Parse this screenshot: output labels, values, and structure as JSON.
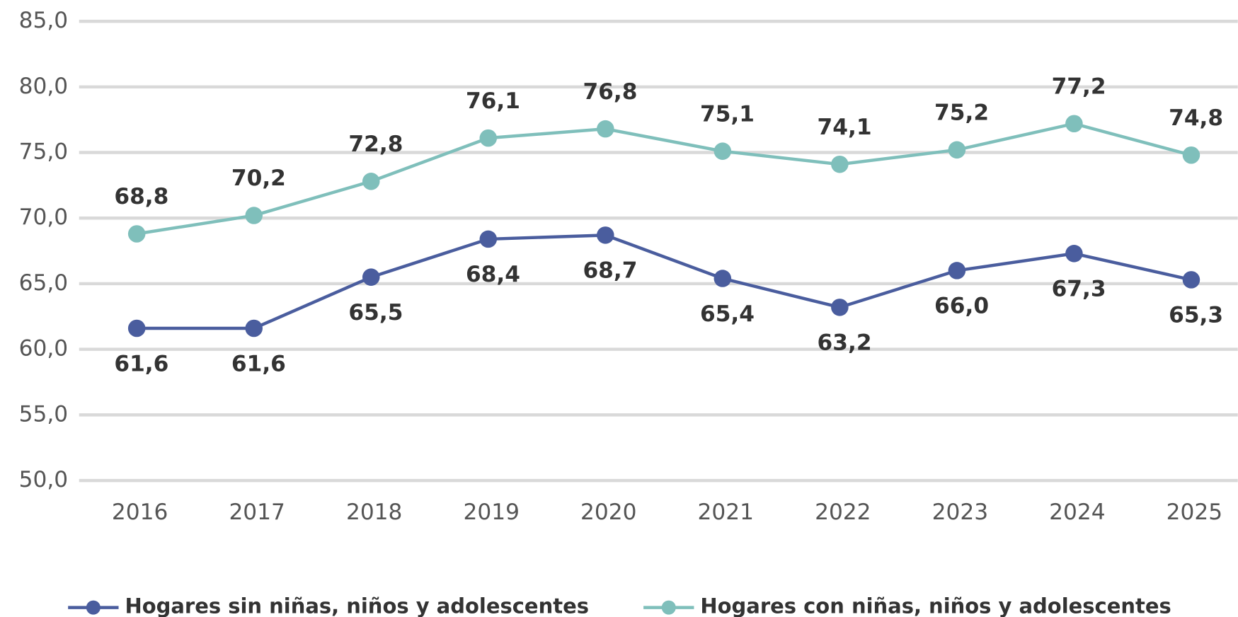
{
  "chart_data": {
    "type": "line",
    "categories": [
      "2016",
      "2017",
      "2018",
      "2019",
      "2020",
      "2021",
      "2022",
      "2023",
      "2024",
      "2025"
    ],
    "series": [
      {
        "name": "Hogares sin niñas, niños y adolescentes",
        "color": "#4a5d9e",
        "values": [
          61.6,
          61.6,
          65.5,
          68.4,
          68.7,
          65.4,
          63.2,
          66.0,
          67.3,
          65.3
        ],
        "value_labels": [
          "61,6",
          "61,6",
          "65,5",
          "68,4",
          "68,7",
          "65,4",
          "63,2",
          "66,0",
          "67,3",
          "65,3"
        ]
      },
      {
        "name": "Hogares con niñas, niños y adolescentes",
        "color": "#7fbfbb",
        "values": [
          68.8,
          70.2,
          72.8,
          76.1,
          76.8,
          75.1,
          74.1,
          75.2,
          77.2,
          74.8
        ],
        "value_labels": [
          "68,8",
          "70,2",
          "72,8",
          "76,1",
          "76,8",
          "75,1",
          "74,1",
          "75,2",
          "77,2",
          "74,8"
        ]
      }
    ],
    "ylim": [
      50,
      85
    ],
    "yticks": [
      {
        "value": 50,
        "label": "50,0"
      },
      {
        "value": 55,
        "label": "55,0"
      },
      {
        "value": 60,
        "label": "60,0"
      },
      {
        "value": 65,
        "label": "65,0"
      },
      {
        "value": 70,
        "label": "70,0"
      },
      {
        "value": 75,
        "label": "75,0"
      },
      {
        "value": 80,
        "label": "80,0"
      },
      {
        "value": 85,
        "label": "85,0"
      }
    ],
    "grid": true,
    "legend": "bottom"
  }
}
